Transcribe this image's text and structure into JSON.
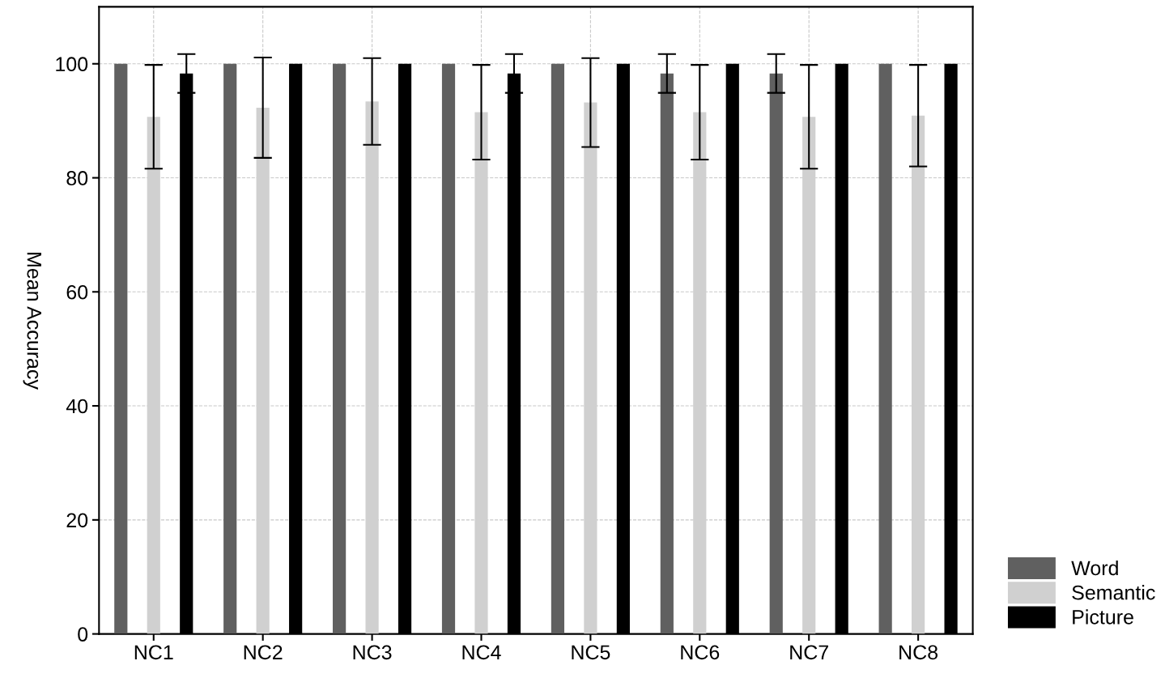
{
  "chart_data": {
    "type": "bar",
    "ylabel": "Mean Accuracy",
    "categories": [
      "NC1",
      "NC2",
      "NC3",
      "NC4",
      "NC5",
      "NC6",
      "NC7",
      "NC8"
    ],
    "series": [
      {
        "name": "Word",
        "color": "#606060",
        "values": [
          100,
          100,
          100,
          100,
          100,
          98.3,
          98.3,
          100
        ],
        "errors": [
          null,
          null,
          null,
          null,
          null,
          3.4,
          3.4,
          null
        ]
      },
      {
        "name": "Semantic",
        "color": "#d0d0d0",
        "values": [
          90.7,
          92.3,
          93.4,
          91.5,
          93.2,
          91.5,
          90.7,
          90.9
        ],
        "errors": [
          9.1,
          8.8,
          7.6,
          8.3,
          7.8,
          8.3,
          9.1,
          8.9
        ]
      },
      {
        "name": "Picture",
        "color": "#000000",
        "values": [
          98.3,
          100,
          100,
          98.3,
          100,
          100,
          100,
          100
        ],
        "errors": [
          3.4,
          null,
          null,
          3.4,
          null,
          null,
          null,
          null
        ]
      }
    ],
    "ylim": [
      0,
      110
    ],
    "yticks": [
      0,
      20,
      40,
      60,
      80,
      100
    ],
    "grid": true,
    "legend": "bottom right"
  }
}
